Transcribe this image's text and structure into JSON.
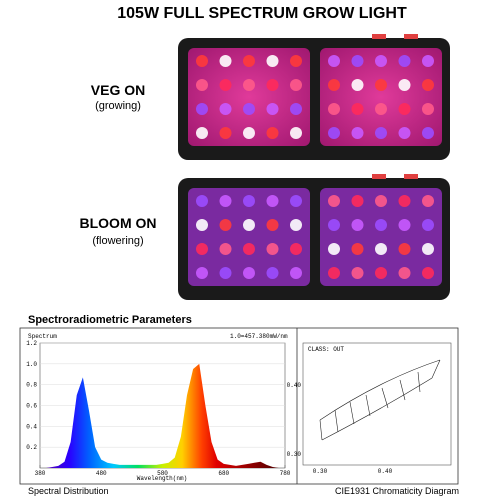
{
  "header": {
    "title": "105W FULL SPECTRUM GROW LIGHT"
  },
  "panels": [
    {
      "label": "VEG ON",
      "sublabel": "(growing)"
    },
    {
      "label": "BLOOM ON",
      "sublabel": "(flowering)"
    }
  ],
  "section_title": "Spectroradiometric Parameters",
  "chart_data": {
    "type": "area",
    "title": "Spectrum",
    "annotation": "1.0=457.380mW/nm",
    "x_label": "Wavelength(nm)",
    "x": [
      380,
      390,
      400,
      410,
      420,
      430,
      440,
      450,
      460,
      470,
      480,
      490,
      500,
      510,
      520,
      530,
      540,
      550,
      560,
      570,
      580,
      590,
      600,
      610,
      620,
      630,
      640,
      650,
      660,
      670,
      680,
      690,
      700,
      710,
      720,
      730,
      740,
      750,
      760,
      770,
      780
    ],
    "values": [
      0,
      0,
      0.01,
      0.02,
      0.06,
      0.25,
      0.7,
      0.87,
      0.55,
      0.2,
      0.08,
      0.05,
      0.04,
      0.03,
      0.03,
      0.03,
      0.03,
      0.03,
      0.03,
      0.03,
      0.04,
      0.05,
      0.1,
      0.3,
      0.7,
      0.95,
      1.0,
      0.6,
      0.25,
      0.08,
      0.04,
      0.03,
      0.02,
      0.03,
      0.04,
      0.05,
      0.06,
      0.03,
      0.01,
      0,
      0
    ],
    "xlim": [
      380,
      780
    ],
    "xticks": [
      380,
      480,
      580,
      680,
      780
    ],
    "ylim": [
      0,
      1.2
    ],
    "yticks": [
      0.2,
      0.4,
      0.6,
      0.8,
      {
        "value": 1,
        "label": "1.0"
      },
      1.2
    ]
  },
  "cie": {
    "class_label": "CLASS: OUT",
    "xticks": [
      "0.30",
      "0.40"
    ],
    "yticks": [
      "0.40",
      "0.30"
    ]
  },
  "captions": {
    "left": "Spectral Distribution",
    "right": "CIE1931 Chromaticity Diagram"
  }
}
